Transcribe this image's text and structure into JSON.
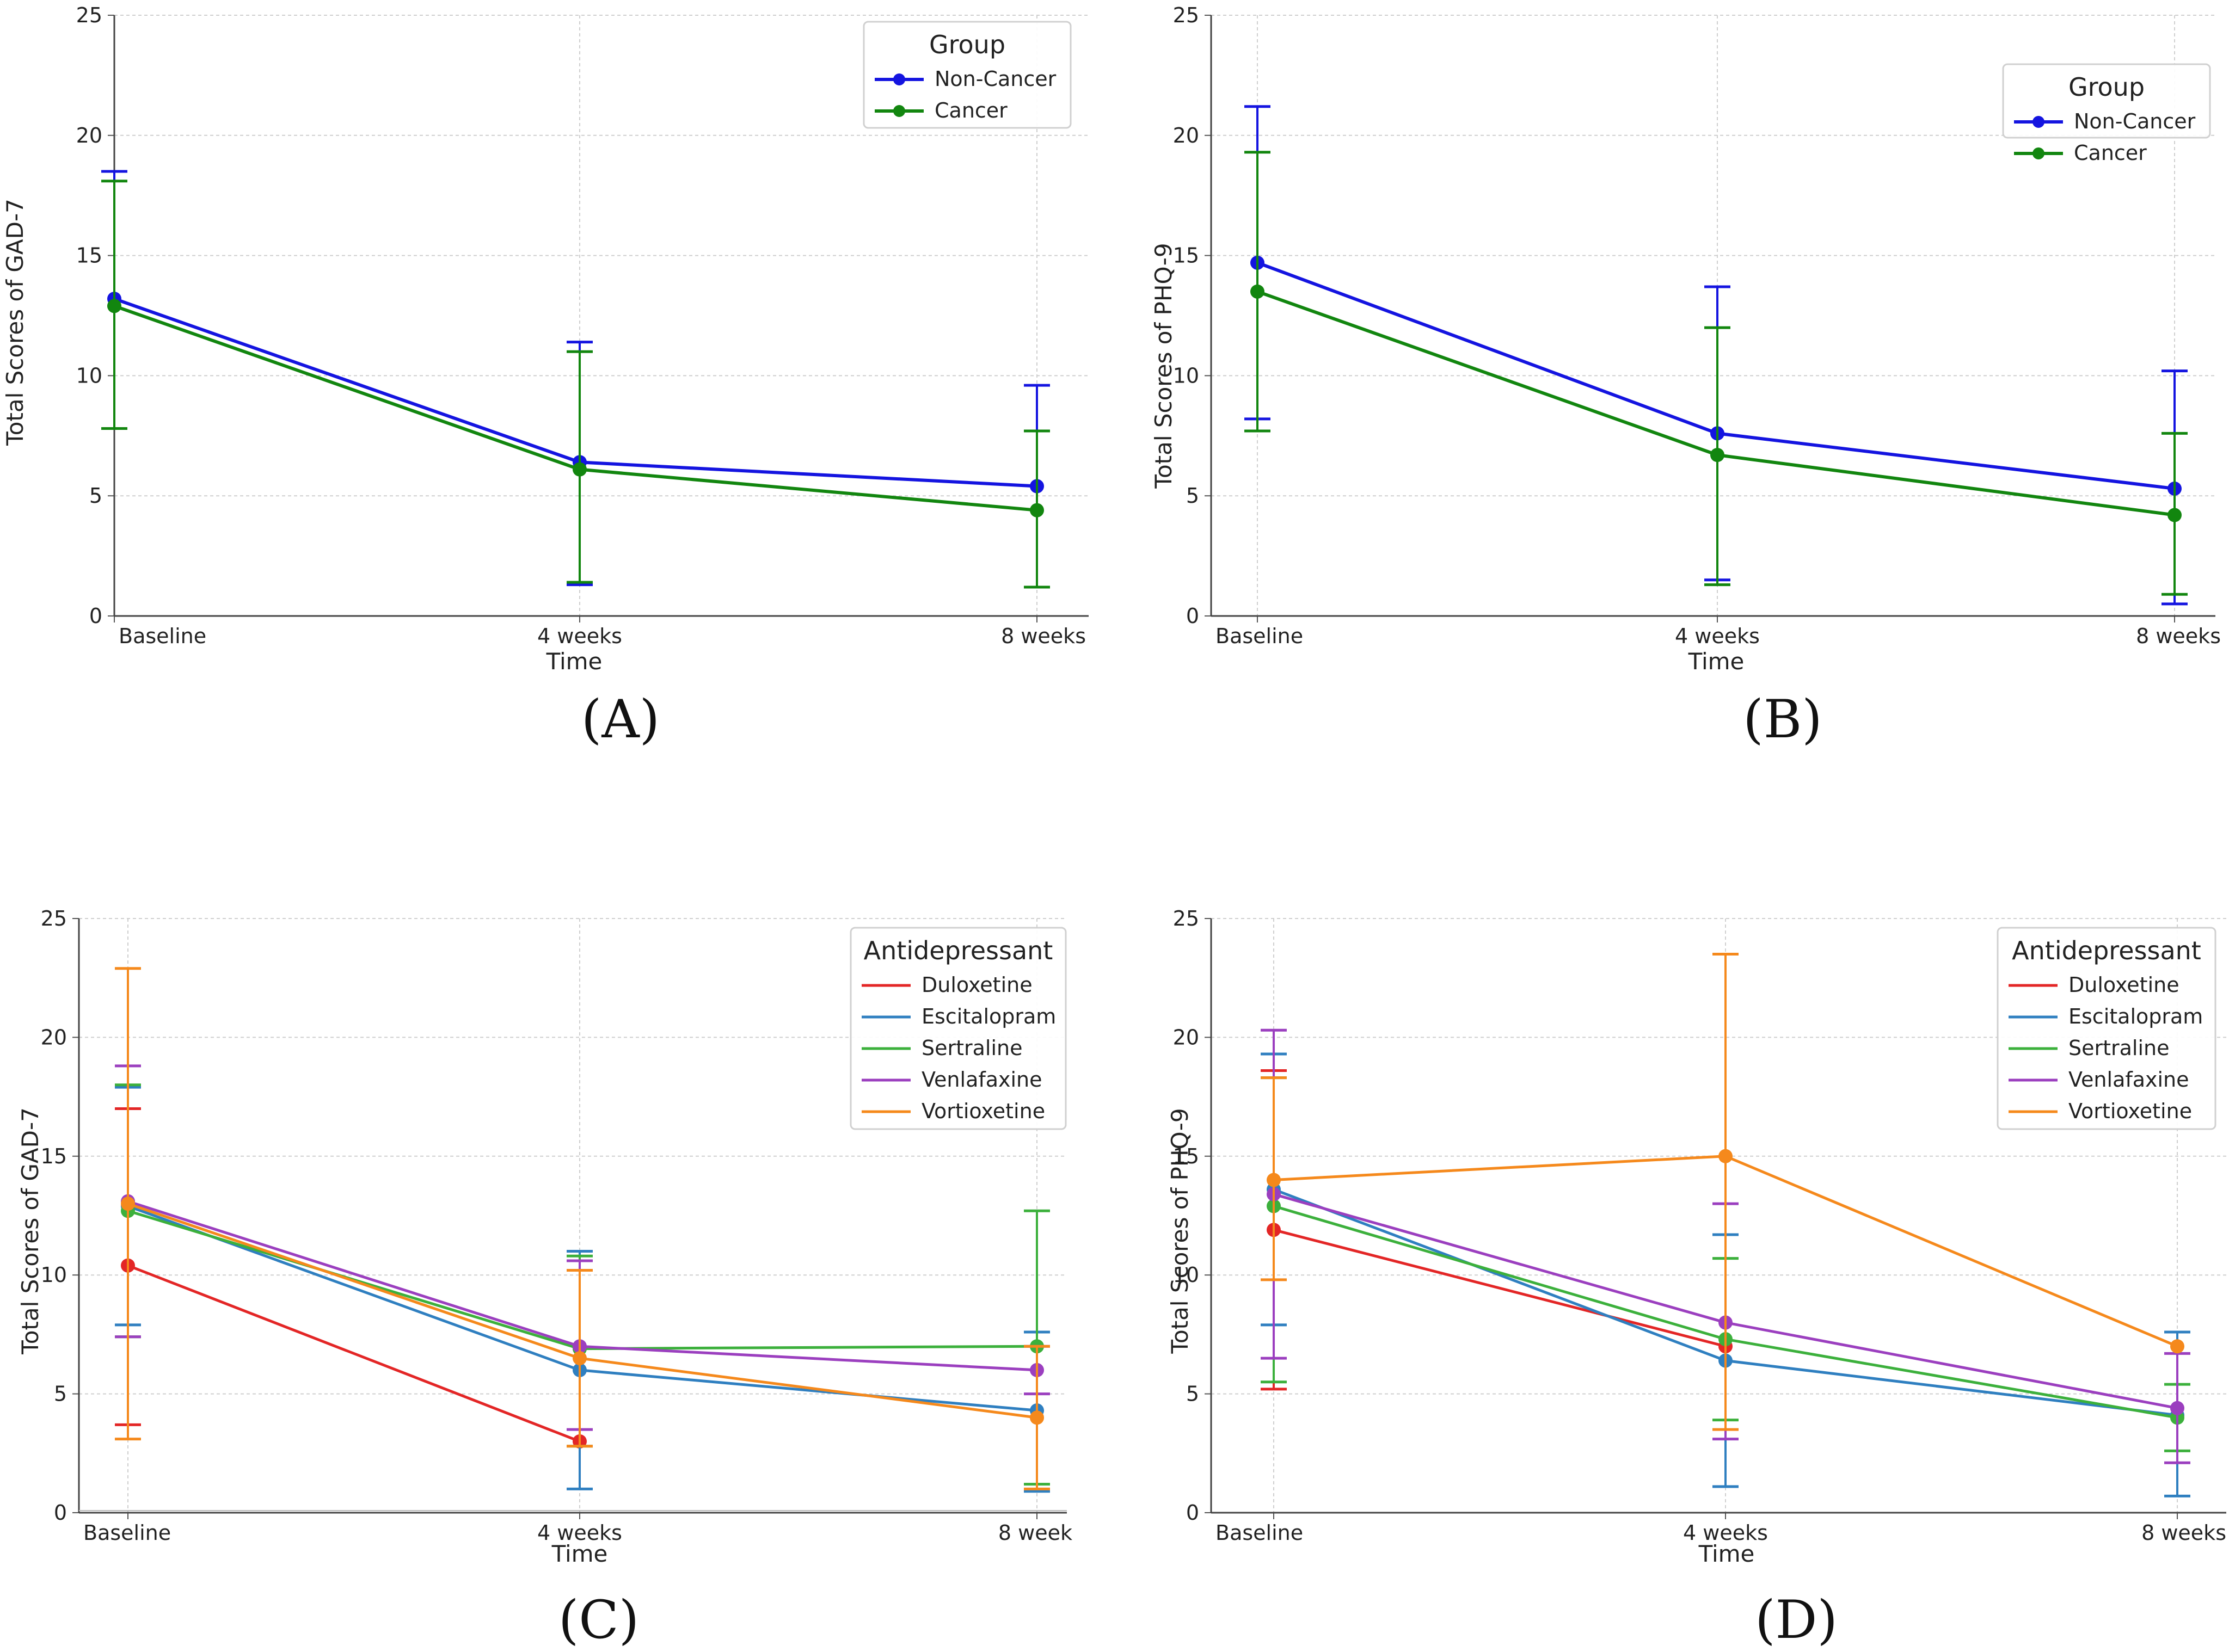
{
  "chart_data": [
    {
      "type": "line",
      "panel_label": "(A)",
      "xlabel": "Time",
      "ylabel": "Total Scores of GAD-7",
      "categories": [
        "Baseline",
        "4 weeks",
        "8 weeks"
      ],
      "ylim": [
        0,
        25
      ],
      "yticks": [
        "0",
        "5",
        "10",
        "15",
        "20",
        "25"
      ],
      "grid": true,
      "legend": {
        "title": "Group",
        "position": "top-right"
      },
      "series": [
        {
          "name": "Non-Cancer",
          "color": "#1414e0",
          "values": [
            13.2,
            6.4,
            5.4
          ],
          "err_low": [
            7.8,
            1.3,
            1.2
          ],
          "err_high": [
            18.5,
            11.4,
            9.6
          ]
        },
        {
          "name": "Cancer",
          "color": "#12860f",
          "values": [
            12.9,
            6.1,
            4.4
          ],
          "err_low": [
            7.8,
            1.4,
            1.2
          ],
          "err_high": [
            18.1,
            11.0,
            7.7
          ]
        }
      ]
    },
    {
      "type": "line",
      "panel_label": "(B)",
      "xlabel": "Time",
      "ylabel": "Total Scores of PHQ-9",
      "categories": [
        "Baseline",
        "4 weeks",
        "8 weeks"
      ],
      "ylim": [
        0,
        25
      ],
      "yticks": [
        "0",
        "5",
        "10",
        "15",
        "20",
        "25"
      ],
      "grid": true,
      "legend": {
        "title": "Group",
        "position": "top-right"
      },
      "series": [
        {
          "name": "Non-Cancer",
          "color": "#1414e0",
          "values": [
            14.7,
            7.6,
            5.3
          ],
          "err_low": [
            8.2,
            1.5,
            0.5
          ],
          "err_high": [
            21.2,
            13.7,
            10.2
          ]
        },
        {
          "name": "Cancer",
          "color": "#12860f",
          "values": [
            13.5,
            6.7,
            4.2
          ],
          "err_low": [
            7.7,
            1.3,
            0.9
          ],
          "err_high": [
            19.3,
            12.0,
            7.6
          ]
        }
      ]
    },
    {
      "type": "line",
      "panel_label": "(C)",
      "xlabel": "Time",
      "ylabel": "Total Scores of GAD-7",
      "categories": [
        "Baseline",
        "4 weeks",
        "8 week"
      ],
      "ylim": [
        0,
        25
      ],
      "yticks": [
        "0",
        "5",
        "10",
        "15",
        "20",
        "25"
      ],
      "grid": true,
      "legend": {
        "title": "Antidepressant",
        "position": "top-right"
      },
      "series": [
        {
          "name": "Duloxetine",
          "color": "#e32626",
          "values": [
            10.4,
            3.0,
            null
          ],
          "err_low": [
            3.7,
            null,
            null
          ],
          "err_high": [
            17.0,
            null,
            null
          ]
        },
        {
          "name": "Escitalopram",
          "color": "#2f7fc0",
          "values": [
            12.9,
            6.0,
            4.3
          ],
          "err_low": [
            7.9,
            1.0,
            0.9
          ],
          "err_high": [
            17.9,
            11.0,
            7.6
          ]
        },
        {
          "name": "Sertraline",
          "color": "#3cb03c",
          "values": [
            12.7,
            6.9,
            7.0
          ],
          "err_low": [
            7.4,
            2.8,
            1.2
          ],
          "err_high": [
            18.0,
            10.8,
            12.7
          ]
        },
        {
          "name": "Venlafaxine",
          "color": "#9b3fbf",
          "values": [
            13.1,
            7.0,
            6.0
          ],
          "err_low": [
            7.4,
            3.5,
            5.0
          ],
          "err_high": [
            18.8,
            10.6,
            7.0
          ]
        },
        {
          "name": "Vortioxetine",
          "color": "#f5891c",
          "values": [
            13.0,
            6.5,
            4.0
          ],
          "err_low": [
            3.1,
            2.8,
            1.0
          ],
          "err_high": [
            22.9,
            10.2,
            7.0
          ]
        }
      ]
    },
    {
      "type": "line",
      "panel_label": "(D)",
      "xlabel": "Time",
      "ylabel": "Total Scores of PHQ-9",
      "categories": [
        "Baseline",
        "4 weeks",
        "8 weeks"
      ],
      "ylim": [
        0,
        25
      ],
      "yticks": [
        "0",
        "5",
        "10",
        "15",
        "20",
        "25"
      ],
      "grid": true,
      "legend": {
        "title": "Antidepressant",
        "position": "top-right"
      },
      "series": [
        {
          "name": "Duloxetine",
          "color": "#e32626",
          "values": [
            11.9,
            7.0,
            null
          ],
          "err_low": [
            5.2,
            null,
            null
          ],
          "err_high": [
            18.6,
            null,
            null
          ]
        },
        {
          "name": "Escitalopram",
          "color": "#2f7fc0",
          "values": [
            13.6,
            6.4,
            4.1
          ],
          "err_low": [
            7.9,
            1.1,
            0.7
          ],
          "err_high": [
            19.3,
            11.7,
            7.6
          ]
        },
        {
          "name": "Sertraline",
          "color": "#3cb03c",
          "values": [
            12.9,
            7.3,
            4.0
          ],
          "err_low": [
            5.5,
            3.9,
            2.6
          ],
          "err_high": [
            18.3,
            10.7,
            5.4
          ]
        },
        {
          "name": "Venlafaxine",
          "color": "#9b3fbf",
          "values": [
            13.4,
            8.0,
            4.4
          ],
          "err_low": [
            6.5,
            3.1,
            2.1
          ],
          "err_high": [
            20.3,
            13.0,
            6.7
          ]
        },
        {
          "name": "Vortioxetine",
          "color": "#f5891c",
          "values": [
            14.0,
            15.0,
            7.0
          ],
          "err_low": [
            9.8,
            3.5,
            null
          ],
          "err_high": [
            18.3,
            23.5,
            null
          ]
        }
      ]
    }
  ]
}
